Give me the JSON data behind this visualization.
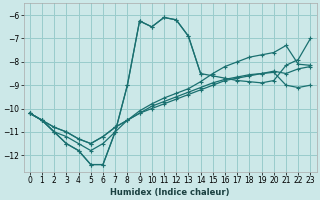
{
  "xlabel": "Humidex (Indice chaleur)",
  "background_color": "#cce8e8",
  "grid_color": "#99cccc",
  "line_color": "#1a7070",
  "xlim": [
    -0.5,
    23.5
  ],
  "ylim": [
    -12.7,
    -5.5
  ],
  "yticks": [
    -6,
    -7,
    -8,
    -9,
    -10,
    -11,
    -12
  ],
  "xticks": [
    0,
    1,
    2,
    3,
    4,
    5,
    6,
    7,
    8,
    9,
    10,
    11,
    12,
    13,
    14,
    15,
    16,
    17,
    18,
    19,
    20,
    21,
    22,
    23
  ],
  "lines": [
    {
      "x": [
        0,
        1,
        2,
        3,
        4,
        5,
        6,
        7,
        8,
        9,
        10,
        11,
        12,
        13,
        14,
        15,
        16,
        17,
        18,
        19,
        20,
        21,
        22,
        23
      ],
      "y": [
        -10.2,
        -10.5,
        -11.0,
        -11.5,
        -11.8,
        -12.4,
        -12.4,
        -11.0,
        -9.0,
        -6.25,
        -6.5,
        -6.1,
        -6.2,
        -6.9,
        -8.5,
        null,
        null,
        null,
        null,
        null,
        null,
        null,
        null,
        null
      ]
    },
    {
      "x": [
        0,
        1,
        2,
        3,
        4,
        5,
        6,
        7,
        8,
        9,
        10,
        11,
        12,
        13,
        14,
        15,
        16,
        17,
        18,
        19,
        20,
        21,
        22,
        23
      ],
      "y": [
        -10.2,
        -10.5,
        -11.0,
        -11.5,
        -11.8,
        -12.4,
        -12.4,
        -11.0,
        -9.0,
        -6.25,
        -6.5,
        -6.1,
        -6.2,
        -6.9,
        -8.5,
        -8.6,
        -8.7,
        -8.8,
        -8.85,
        -8.9,
        -8.8,
        -8.15,
        -7.9,
        -7.0
      ]
    },
    {
      "x": [
        0,
        1,
        2,
        3,
        4,
        5,
        6,
        7,
        8,
        9,
        10,
        11,
        12,
        13,
        14,
        15,
        16,
        17,
        18,
        19,
        20,
        21,
        22,
        23
      ],
      "y": [
        -10.2,
        -10.5,
        -11.0,
        -11.2,
        -11.5,
        -11.8,
        -11.5,
        -11.0,
        -10.5,
        -10.2,
        -10.0,
        -9.8,
        -9.6,
        -9.4,
        -9.2,
        -9.0,
        -8.8,
        -8.7,
        -8.6,
        -8.5,
        -8.4,
        -8.5,
        -8.3,
        -8.2
      ]
    },
    {
      "x": [
        0,
        1,
        2,
        3,
        4,
        5,
        6,
        7,
        8,
        9,
        10,
        11,
        12,
        13,
        14,
        15,
        16,
        17,
        18,
        19,
        20,
        21,
        22,
        23
      ],
      "y": [
        -10.2,
        -10.5,
        -10.8,
        -11.0,
        -11.3,
        -11.5,
        -11.2,
        -10.8,
        -10.5,
        -10.2,
        -9.9,
        -9.7,
        -9.5,
        -9.3,
        -9.1,
        -8.9,
        -8.75,
        -8.65,
        -8.55,
        -8.5,
        -8.45,
        -9.0,
        -9.1,
        -9.0
      ]
    },
    {
      "x": [
        0,
        1,
        2,
        3,
        4,
        5,
        6,
        7,
        8,
        9,
        10,
        11,
        12,
        13,
        14,
        15,
        16,
        17,
        18,
        19,
        20,
        21,
        22,
        23
      ],
      "y": [
        -10.2,
        -10.5,
        -10.8,
        -11.0,
        -11.3,
        -11.5,
        -11.2,
        -10.8,
        -10.5,
        -10.1,
        -9.8,
        -9.55,
        -9.35,
        -9.15,
        -8.85,
        -8.5,
        -8.2,
        -8.0,
        -7.8,
        -7.7,
        -7.6,
        -7.3,
        -8.1,
        -8.15
      ]
    }
  ]
}
